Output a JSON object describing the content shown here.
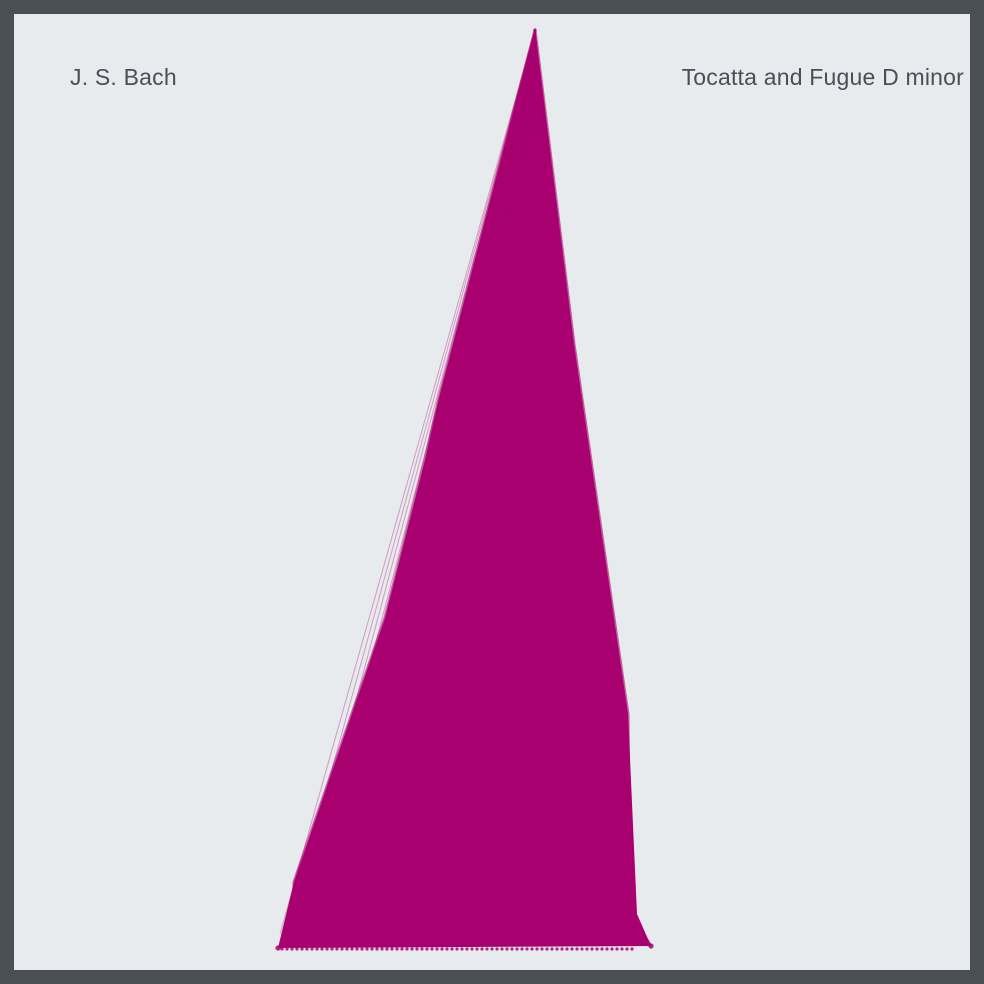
{
  "artwork": {
    "composer": "J. S. Bach",
    "piece": "Tocatta and Fugue D minor"
  },
  "colors": {
    "frame": "#4a4f56",
    "canvas": "#e8ebee",
    "text": "#4a4f56",
    "shape": "#a8006f"
  }
}
